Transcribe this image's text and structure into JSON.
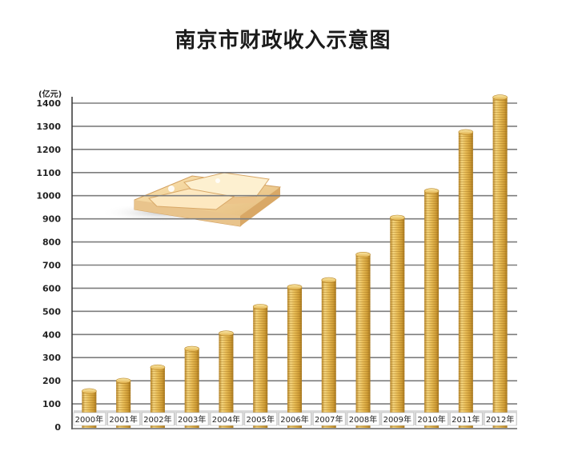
{
  "chart_data": {
    "type": "bar",
    "title": "南京市财政收入示意图",
    "ylabel": "(亿元)",
    "ylim": [
      0,
      1400
    ],
    "yticks": [
      0,
      100,
      200,
      300,
      400,
      500,
      600,
      700,
      800,
      900,
      1000,
      1100,
      1200,
      1300,
      1400
    ],
    "grid": true,
    "categories": [
      "2000年",
      "2001年",
      "2002年",
      "2003年",
      "2004年",
      "2005年",
      "2006年",
      "2007年",
      "2008年",
      "2009年",
      "2010年",
      "2011年",
      "2012年"
    ],
    "values": [
      155,
      200,
      258,
      338,
      405,
      520,
      605,
      635,
      745,
      905,
      1020,
      1275,
      1425
    ]
  },
  "colors": {
    "grid": "#7d7d7d",
    "coin_light": "#f5dc8c",
    "coin_mid": "#deae42",
    "coin_dark": "#b8862a",
    "category_band": "#d9d9d9"
  }
}
